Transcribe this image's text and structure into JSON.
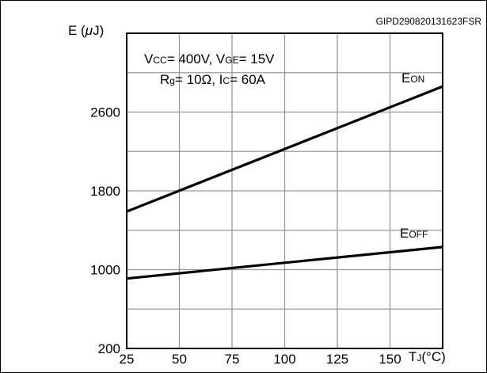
{
  "chart_data": {
    "type": "line",
    "reference_id": "GIPD290820131623FSR",
    "y_axis": {
      "label_main": "E (",
      "label_mu": "μ",
      "label_unit": "J)",
      "ylim": [
        200,
        3400
      ],
      "ticks": [
        200,
        1000,
        1800,
        2600
      ]
    },
    "x_axis": {
      "label_main": "T",
      "label_sub": "J",
      "label_unit": "(°C)",
      "xlim": [
        25,
        175
      ],
      "ticks": [
        25,
        50,
        75,
        100,
        125,
        150
      ]
    },
    "grid": true,
    "conditions": {
      "line1": [
        {
          "t": "V",
          "sub": false
        },
        {
          "t": "CC",
          "sub": true
        },
        {
          "t": "= 400V, V",
          "sub": false
        },
        {
          "t": "GE",
          "sub": true
        },
        {
          "t": "= 15V",
          "sub": false
        }
      ],
      "line2": [
        {
          "t": "R",
          "sub": false
        },
        {
          "t": "g",
          "sub": true
        },
        {
          "t": "= 10Ω, I",
          "sub": false
        },
        {
          "t": "C",
          "sub": true
        },
        {
          "t": "= 60A",
          "sub": false
        }
      ]
    },
    "series": [
      {
        "name_main": "E",
        "name_sub": "ON",
        "x": [
          25,
          175
        ],
        "y": [
          1590,
          2860
        ]
      },
      {
        "name_main": "E",
        "name_sub": "OFF",
        "x": [
          25,
          175
        ],
        "y": [
          910,
          1230
        ]
      }
    ],
    "colors": {
      "line": "#000000",
      "grid": "#999999"
    }
  }
}
